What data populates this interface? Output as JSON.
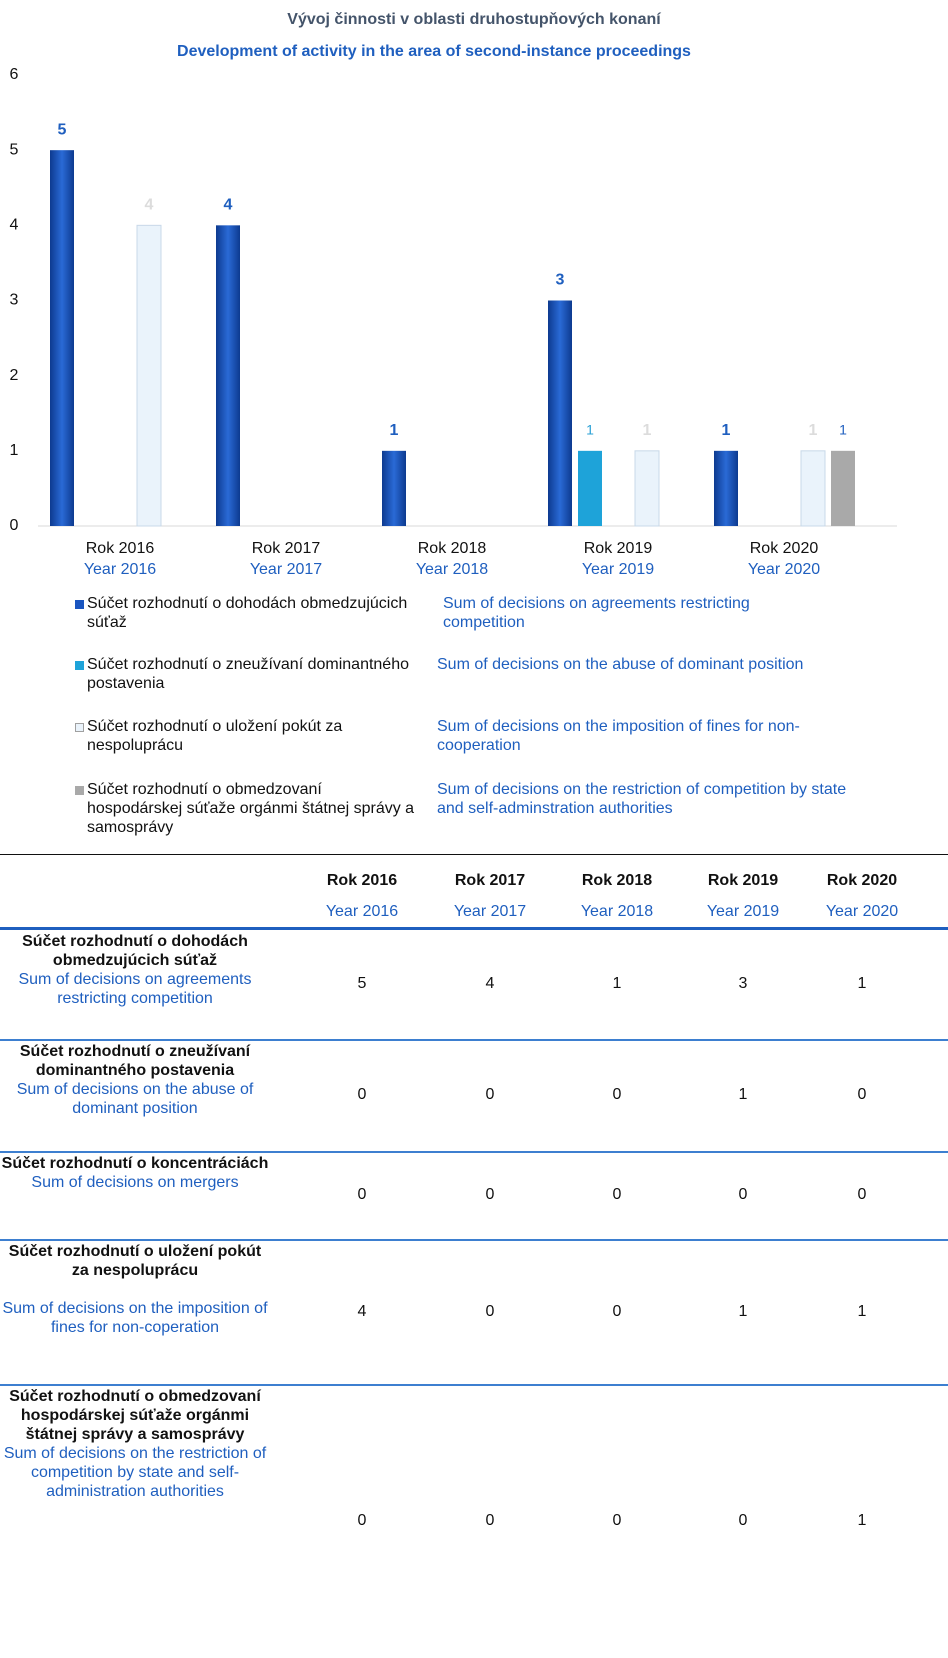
{
  "chart_data": {
    "type": "bar",
    "title": "Vývoj činnosti v oblasti druhostupňových konaní",
    "subtitle": "Development of activity in the area of second-instance proceedings",
    "categories": [
      "Rok 2016",
      "Rok 2017",
      "Rok 2018",
      "Rok 2019",
      "Rok 2020"
    ],
    "categories_en": [
      "Year 2016",
      "Year 2017",
      "Year 2018",
      "Year 2019",
      "Year 2020"
    ],
    "ylim": [
      0,
      6
    ],
    "yticks": [
      0,
      1,
      2,
      3,
      4,
      5,
      6
    ],
    "grid": false,
    "series": [
      {
        "name": "Súčet rozhodnutí o dohodách obmedzujúcich súťaž",
        "name_en": "Sum of decisions on agreements restricting competition",
        "color": "#1a55c0",
        "label_color": "#1f5fbf",
        "values": [
          5,
          4,
          1,
          3,
          1
        ]
      },
      {
        "name": "Súčet rozhodnutí o zneužívaní dominantného postavenia",
        "name_en": "Sum of decisions on the abuse of dominant position",
        "color": "#1ea3d9",
        "label_color": "#29a0d6",
        "values": [
          0,
          0,
          0,
          1,
          0
        ]
      },
      {
        "name": "Súčet rozhodnutí o uložení pokút za nespoluprácu",
        "name_en": "Sum of decisions on the imposition of fines for non-cooperation",
        "color": "#eaf3fb",
        "label_color": "#dcdcdc",
        "values": [
          4,
          0,
          0,
          1,
          1
        ]
      },
      {
        "name": "Súčet rozhodnutí o obmedzovaní hospodárskej súťaže orgánmi štátnej správy a samosprávy",
        "name_en": "Sum of decisions on the restriction of competition by state and self-adminstration authorities",
        "color": "#a9a9a9",
        "label_color": "#1f5fbf",
        "values": [
          0,
          0,
          0,
          0,
          1
        ]
      }
    ]
  },
  "table": {
    "columns": [
      {
        "sk": "Rok 2016",
        "en": "Year 2016"
      },
      {
        "sk": "Rok 2017",
        "en": "Year 2017"
      },
      {
        "sk": "Rok 2018",
        "en": "Year 2018"
      },
      {
        "sk": "Rok 2019",
        "en": "Year 2019"
      },
      {
        "sk": "Rok 2020",
        "en": "Year 2020"
      }
    ],
    "rows": [
      {
        "sk": "Súčet rozhodnutí o dohodách obmedzujúcich súťaž",
        "en": "Sum of decisions on agreements restricting competition",
        "values": [
          "5",
          "4",
          "1",
          "3",
          "1"
        ]
      },
      {
        "sk": "Súčet rozhodnutí o zneužívaní dominantného postavenia",
        "en": "Sum of decisions on the abuse of dominant position",
        "values": [
          "0",
          "0",
          "0",
          "1",
          "0"
        ]
      },
      {
        "sk": "Súčet rozhodnutí o koncentráciách",
        "en": "Sum of decisions on mergers",
        "values": [
          "0",
          "0",
          "0",
          "0",
          "0"
        ]
      },
      {
        "sk": "Súčet rozhodnutí o uložení pokút za nespoluprácu",
        "en": "Sum of decisions on the imposition of fines for non-coperation",
        "values": [
          "4",
          "0",
          "0",
          "1",
          "1"
        ]
      },
      {
        "sk": "Súčet rozhodnutí o obmedzovaní hospodárskej súťaže orgánmi štátnej správy a samosprávy",
        "en": "Sum of decisions on the restriction of competition by state and self-administration authorities",
        "values": [
          "0",
          "0",
          "0",
          "0",
          "1"
        ]
      }
    ]
  }
}
